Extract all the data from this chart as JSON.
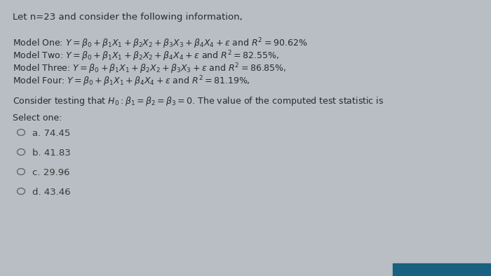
{
  "background_color": "#b8bec4",
  "title_text": "Let n=23 and consider the following information,",
  "model_one": "Model One: $Y = \\beta_0 + \\beta_1 X_1 + \\beta_2 X_2 + \\beta_3 X_3 + \\beta_4 X_4 + \\epsilon$ and $R^2 = 90.62\\%$",
  "model_two": "Model Two: $Y = \\beta_0 + \\beta_1 X_1 + \\beta_2 X_2 + \\beta_4 X_4 + \\epsilon$ and $R^2 = 82.55\\%$,",
  "model_three": "Model Three: $Y = \\beta_0 + \\beta_1 X_1 + \\beta_2 X_2 + \\beta_3 X_3 + \\epsilon$ and $R^2 = 86.85\\%$,",
  "model_four": "Model Four: $Y = \\beta_0 + \\beta_1 X_1 + \\beta_4 X_4 + \\epsilon$ and $R^2 = 81.19\\%$,",
  "question": "Consider testing that $H_0 : \\beta_1 = \\beta_2 = \\beta_3 = 0$. The value of the computed test statistic is",
  "select_one": "Select one:",
  "options": [
    "a. 74.45",
    "b. 41.83",
    "c. 29.96",
    "d. 43.46"
  ],
  "text_color": "#2a2a2a",
  "option_color": "#3a3a3a",
  "circle_color": "#666666",
  "title_fontsize": 9.5,
  "body_fontsize": 9.0,
  "option_fontsize": 9.5,
  "bottom_bar_color": "#1a6080"
}
